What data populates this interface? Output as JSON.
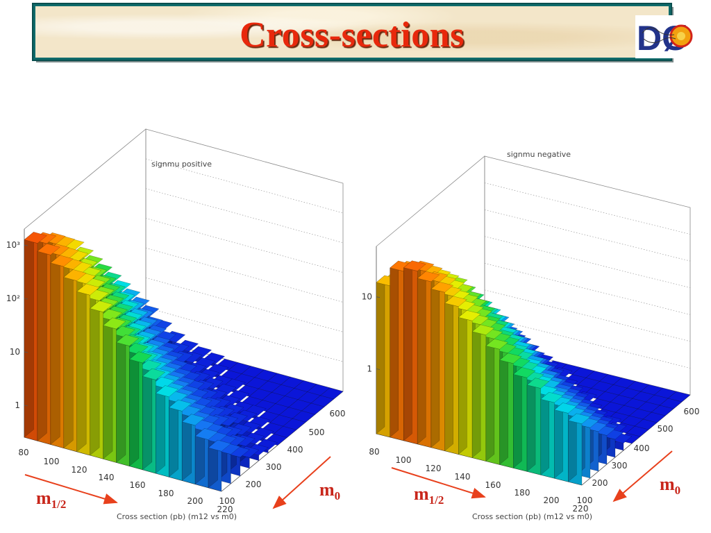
{
  "slide": {
    "title": "Cross-sections",
    "logo_text": "DØ"
  },
  "annotations": {
    "m_half_left": "m",
    "m_half_left_sub": "1/2",
    "m0_left": "m",
    "m0_left_sub": "0",
    "m_half_right": "m",
    "m_half_right_sub": "1/2",
    "m0_right": "m",
    "m0_right_sub": "0"
  },
  "colors": {
    "title": "#e8280c",
    "annotation": "#c8261b",
    "border": "#0f6b6b"
  },
  "chart_data": [
    {
      "type": "lego3d",
      "title": "signmu positive",
      "xlabel": "Cross section (pb) (m12 vs m0)",
      "x_tick_labels": [
        "80",
        "100",
        "120",
        "140",
        "160",
        "180",
        "200",
        "220"
      ],
      "y_tick_labels": [
        "100",
        "200",
        "300",
        "400",
        "500",
        "600"
      ],
      "z_tick_labels": [
        "1",
        "10",
        "10²",
        "10³"
      ],
      "z_scale": "log",
      "m12_range": [
        80,
        220
      ],
      "m0_range": [
        50,
        650
      ],
      "zlim_log10": [
        -0.6,
        3.3
      ],
      "values_log10": [
        [
          3.1,
          2.95,
          2.8,
          2.6,
          2.4,
          2.1,
          1.8,
          1.5,
          1.2,
          0.9,
          0.6,
          0.3,
          0.0
        ],
        [
          2.95,
          2.8,
          2.6,
          2.4,
          2.1,
          1.8,
          1.5,
          1.2,
          0.9,
          0.6,
          0.3,
          0.0,
          -0.2
        ],
        [
          2.8,
          2.6,
          2.4,
          2.15,
          1.85,
          1.55,
          1.25,
          0.95,
          0.65,
          0.35,
          0.05,
          -0.2,
          -0.35
        ],
        [
          2.6,
          2.4,
          2.15,
          1.85,
          1.55,
          1.25,
          0.95,
          0.65,
          0.35,
          0.05,
          -0.2,
          -0.35,
          -0.45
        ],
        [
          2.4,
          2.15,
          1.85,
          1.55,
          1.25,
          0.95,
          0.65,
          0.35,
          0.1,
          -0.15,
          -0.3,
          -0.45,
          -0.5
        ],
        [
          2.15,
          1.85,
          1.55,
          1.25,
          0.95,
          0.65,
          0.4,
          0.15,
          -0.1,
          -0.3,
          -0.45,
          -0.5,
          -0.55
        ],
        [
          1.9,
          1.6,
          1.3,
          1.0,
          0.7,
          0.45,
          0.2,
          -0.05,
          -0.25,
          -0.4,
          -0.5,
          -0.55,
          -0.6
        ],
        [
          1.65,
          1.35,
          1.05,
          0.75,
          0.5,
          0.25,
          0.0,
          -0.2,
          -0.35,
          -0.45,
          -0.55,
          -0.6,
          -0.6
        ],
        [
          1.4,
          1.1,
          0.8,
          0.55,
          0.3,
          0.05,
          -0.15,
          -0.3,
          -0.45,
          -0.5,
          -0.55,
          -0.6,
          -0.6
        ],
        [
          1.15,
          0.85,
          0.6,
          0.35,
          0.1,
          -0.1,
          -0.25,
          -0.4,
          -0.5,
          -0.55,
          -0.6,
          -0.6,
          -0.6
        ],
        [
          0.9,
          0.65,
          0.4,
          0.15,
          -0.05,
          -0.2,
          -0.35,
          -0.45,
          -0.55,
          -0.6,
          -0.6,
          -0.6,
          -0.6
        ],
        [
          0.7,
          0.45,
          0.2,
          0.0,
          -0.15,
          -0.3,
          -0.4,
          -0.5,
          -0.55,
          -0.6,
          -0.6,
          -0.6,
          -0.6
        ],
        [
          0.5,
          0.25,
          0.05,
          -0.15,
          -0.3,
          -0.4,
          -0.5,
          -0.55,
          -0.6,
          -0.6,
          -0.6,
          -0.6,
          -0.6
        ],
        [
          0.3,
          0.1,
          -0.1,
          -0.25,
          -0.4,
          -0.5,
          -0.55,
          -0.6,
          -0.6,
          -0.6,
          -0.6,
          -0.6,
          -0.6
        ],
        [
          0.15,
          -0.05,
          -0.25,
          -0.4,
          -0.5,
          -0.55,
          -0.6,
          -0.6,
          -0.6,
          -0.6,
          -0.6,
          -0.6,
          -0.6
        ]
      ]
    },
    {
      "type": "lego3d",
      "title": "signmu negative",
      "xlabel": "Cross section (pb) (m12 vs m0)",
      "x_tick_labels": [
        "80",
        "100",
        "120",
        "140",
        "160",
        "180",
        "200",
        "220"
      ],
      "y_tick_labels": [
        "100",
        "200",
        "300",
        "400",
        "500",
        "600"
      ],
      "z_tick_labels": [
        "1",
        "10"
      ],
      "z_scale": "log",
      "m12_range": [
        80,
        220
      ],
      "m0_range": [
        50,
        650
      ],
      "zlim_log10": [
        -0.9,
        1.7
      ],
      "values_log10": [
        [
          1.2,
          1.15,
          1.05,
          0.95,
          0.8,
          0.65,
          0.45,
          0.3,
          0.1,
          -0.1,
          -0.3,
          -0.5,
          -0.7
        ],
        [
          1.45,
          1.35,
          1.25,
          1.1,
          0.95,
          0.8,
          0.6,
          0.4,
          0.2,
          0.0,
          -0.2,
          -0.4,
          -0.6
        ],
        [
          1.5,
          1.4,
          1.25,
          1.1,
          0.95,
          0.8,
          0.6,
          0.4,
          0.2,
          0.0,
          -0.2,
          -0.45,
          -0.65
        ],
        [
          1.4,
          1.3,
          1.15,
          1.0,
          0.85,
          0.65,
          0.45,
          0.25,
          0.05,
          -0.15,
          -0.35,
          -0.55,
          -0.75
        ],
        [
          1.3,
          1.15,
          1.0,
          0.85,
          0.7,
          0.5,
          0.3,
          0.1,
          -0.1,
          -0.3,
          -0.5,
          -0.7,
          -0.85
        ],
        [
          1.15,
          1.0,
          0.85,
          0.7,
          0.5,
          0.35,
          0.15,
          -0.05,
          -0.25,
          -0.45,
          -0.65,
          -0.8,
          -0.9
        ],
        [
          1.0,
          0.85,
          0.7,
          0.55,
          0.35,
          0.2,
          0.0,
          -0.2,
          -0.4,
          -0.6,
          -0.75,
          -0.85,
          -0.9
        ],
        [
          0.85,
          0.7,
          0.55,
          0.4,
          0.2,
          0.05,
          -0.15,
          -0.35,
          -0.55,
          -0.7,
          -0.85,
          -0.9,
          -0.9
        ],
        [
          0.7,
          0.55,
          0.4,
          0.25,
          0.05,
          -0.1,
          -0.3,
          -0.5,
          -0.65,
          -0.8,
          -0.9,
          -0.9,
          -0.9
        ],
        [
          0.55,
          0.4,
          0.25,
          0.1,
          -0.1,
          -0.25,
          -0.45,
          -0.6,
          -0.75,
          -0.85,
          -0.9,
          -0.9,
          -0.9
        ],
        [
          0.4,
          0.25,
          0.1,
          -0.05,
          -0.25,
          -0.4,
          -0.55,
          -0.7,
          -0.85,
          -0.9,
          -0.9,
          -0.9,
          -0.9
        ],
        [
          0.3,
          0.1,
          -0.05,
          -0.2,
          -0.35,
          -0.5,
          -0.65,
          -0.8,
          -0.9,
          -0.9,
          -0.9,
          -0.9,
          -0.9
        ],
        [
          0.15,
          0.0,
          -0.15,
          -0.3,
          -0.45,
          -0.6,
          -0.75,
          -0.85,
          -0.9,
          -0.9,
          -0.9,
          -0.9,
          -0.9
        ],
        [
          0.05,
          -0.1,
          -0.25,
          -0.4,
          -0.55,
          -0.7,
          -0.8,
          -0.9,
          -0.9,
          -0.9,
          -0.9,
          -0.9,
          -0.9
        ],
        [
          -0.05,
          -0.2,
          -0.35,
          -0.5,
          -0.65,
          -0.8,
          -0.9,
          -0.9,
          -0.9,
          -0.9,
          -0.9,
          -0.9,
          -0.9
        ]
      ]
    }
  ]
}
